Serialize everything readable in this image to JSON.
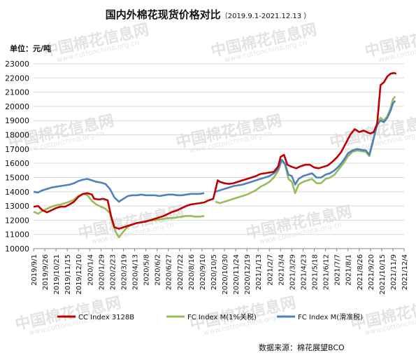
{
  "title_main": "国内外棉花现货价格对比",
  "title_range": "（2019.9.1-2021.12.13 ）",
  "unit_label": "单位：元/吨",
  "source_label": "数据来源：棉花展望BCO",
  "watermark_text": "中国棉花信息网",
  "watermark_url": "www.cottonchina.org.cn",
  "chart_data": {
    "type": "line",
    "ylim": [
      10000,
      23000
    ],
    "y_ticks": [
      10000,
      11000,
      12000,
      13000,
      14000,
      15000,
      16000,
      17000,
      18000,
      19000,
      20000,
      21000,
      22000,
      23000
    ],
    "x_ticks": [
      "2019/9/1",
      "2019/9/26",
      "2019/10/21",
      "2019/11/15",
      "2019/12/10",
      "2020/1/4",
      "2020/1/29",
      "2020/2/23",
      "2020/3/19",
      "2020/4/13",
      "2020/5/8",
      "2020/6/2",
      "2020/6/27",
      "2020/7/22",
      "2020/8/16",
      "2020/9/10",
      "2020/10/5",
      "2020/10/30",
      "2020/11/24",
      "2020/12/19",
      "2021/1/13",
      "2021/2/7",
      "2021/3/4",
      "2021/3/29",
      "2021/4/23",
      "2021/5/18",
      "2021/6/12",
      "2021/7/7",
      "2021/8/1",
      "2021/8/26",
      "2021/9/20",
      "2021/10/15",
      "2021/11/9",
      "2021/12/4"
    ],
    "grid": "horizontal",
    "legend_position": "bottom",
    "series": [
      {
        "name": "CC Index 3128B",
        "color": "#c00000",
        "points": [
          [
            0,
            12950
          ],
          [
            0.4,
            13000
          ],
          [
            0.8,
            12700
          ],
          [
            1.2,
            12550
          ],
          [
            1.6,
            12700
          ],
          [
            2.0,
            12850
          ],
          [
            2.4,
            12950
          ],
          [
            2.8,
            12950
          ],
          [
            3.2,
            13100
          ],
          [
            3.6,
            13300
          ],
          [
            4.0,
            13650
          ],
          [
            4.4,
            13850
          ],
          [
            4.8,
            13900
          ],
          [
            5.2,
            13800
          ],
          [
            5.4,
            13500
          ],
          [
            5.8,
            13450
          ],
          [
            6.2,
            13500
          ],
          [
            6.6,
            13400
          ],
          [
            6.9,
            12300
          ],
          [
            7.2,
            11500
          ],
          [
            7.6,
            11400
          ],
          [
            8.0,
            11500
          ],
          [
            8.4,
            11600
          ],
          [
            8.8,
            11700
          ],
          [
            9.2,
            11800
          ],
          [
            9.6,
            11850
          ],
          [
            10.0,
            11900
          ],
          [
            10.4,
            12000
          ],
          [
            10.8,
            12100
          ],
          [
            11.2,
            12200
          ],
          [
            11.6,
            12300
          ],
          [
            12.0,
            12450
          ],
          [
            12.4,
            12600
          ],
          [
            12.8,
            12700
          ],
          [
            13.2,
            12850
          ],
          [
            13.6,
            13000
          ],
          [
            14.0,
            13100
          ],
          [
            14.4,
            13150
          ],
          [
            14.8,
            13200
          ],
          [
            15.2,
            13250
          ],
          [
            15.6,
            13400
          ],
          [
            16.0,
            13500
          ],
          [
            16.4,
            14800
          ],
          [
            16.6,
            14700
          ],
          [
            17.0,
            14600
          ],
          [
            17.4,
            14550
          ],
          [
            17.8,
            14600
          ],
          [
            18.2,
            14700
          ],
          [
            18.6,
            14800
          ],
          [
            19.0,
            14900
          ],
          [
            19.4,
            15000
          ],
          [
            19.8,
            15100
          ],
          [
            20.2,
            15250
          ],
          [
            20.6,
            15300
          ],
          [
            21.0,
            15350
          ],
          [
            21.4,
            15400
          ],
          [
            21.8,
            15800
          ],
          [
            22.0,
            16450
          ],
          [
            22.3,
            16600
          ],
          [
            22.6,
            15900
          ],
          [
            23.0,
            15750
          ],
          [
            23.4,
            15650
          ],
          [
            23.8,
            15800
          ],
          [
            24.2,
            15900
          ],
          [
            24.6,
            15900
          ],
          [
            25.0,
            15700
          ],
          [
            25.4,
            15650
          ],
          [
            25.8,
            15750
          ],
          [
            26.2,
            15850
          ],
          [
            26.6,
            16100
          ],
          [
            27.0,
            16400
          ],
          [
            27.4,
            16800
          ],
          [
            27.8,
            17400
          ],
          [
            28.2,
            18000
          ],
          [
            28.6,
            18400
          ],
          [
            29.0,
            18200
          ],
          [
            29.4,
            18300
          ],
          [
            29.8,
            18150
          ],
          [
            30.0,
            18100
          ],
          [
            30.3,
            18200
          ],
          [
            30.6,
            18800
          ],
          [
            30.9,
            21500
          ],
          [
            31.2,
            21700
          ],
          [
            31.5,
            22100
          ],
          [
            31.8,
            22300
          ],
          [
            32.1,
            22350
          ],
          [
            32.3,
            22300
          ]
        ]
      },
      {
        "name": "FC Index M(1%关税)",
        "color": "#9bbb59",
        "points": [
          [
            0,
            12600
          ],
          [
            0.4,
            12450
          ],
          [
            0.8,
            12650
          ],
          [
            1.2,
            12800
          ],
          [
            1.6,
            12950
          ],
          [
            2.0,
            13050
          ],
          [
            2.4,
            13100
          ],
          [
            2.8,
            13200
          ],
          [
            3.2,
            13300
          ],
          [
            3.6,
            13450
          ],
          [
            4.0,
            13700
          ],
          [
            4.4,
            13850
          ],
          [
            4.8,
            13750
          ],
          [
            5.2,
            13350
          ],
          [
            5.6,
            13100
          ],
          [
            6.0,
            12950
          ],
          [
            6.4,
            12800
          ],
          [
            6.8,
            12500
          ],
          [
            7.0,
            11900
          ],
          [
            7.3,
            11200
          ],
          [
            7.6,
            10800
          ],
          [
            8.0,
            11200
          ],
          [
            8.4,
            11550
          ],
          [
            8.8,
            11700
          ],
          [
            9.2,
            11800
          ],
          [
            9.6,
            11850
          ],
          [
            10.0,
            11950
          ],
          [
            10.4,
            12000
          ],
          [
            10.8,
            12000
          ],
          [
            11.2,
            12050
          ],
          [
            11.6,
            12100
          ],
          [
            12.0,
            12150
          ],
          [
            12.4,
            12150
          ],
          [
            12.8,
            12200
          ],
          [
            13.2,
            12250
          ],
          [
            13.6,
            12300
          ],
          [
            14.0,
            12300
          ],
          [
            14.4,
            12250
          ],
          [
            14.8,
            12250
          ],
          [
            15.2,
            12300
          ]
        ],
        "segments_note": "",
        "points2": [
          [
            16.2,
            13300
          ],
          [
            16.6,
            13200
          ],
          [
            17.0,
            13300
          ],
          [
            17.4,
            13400
          ],
          [
            17.8,
            13500
          ],
          [
            18.2,
            13600
          ],
          [
            18.6,
            13700
          ],
          [
            19.0,
            13800
          ],
          [
            19.4,
            13950
          ],
          [
            19.8,
            14100
          ],
          [
            20.2,
            14350
          ],
          [
            20.6,
            14500
          ],
          [
            21.0,
            14700
          ],
          [
            21.4,
            15000
          ],
          [
            21.8,
            15500
          ],
          [
            22.1,
            16200
          ],
          [
            22.4,
            15900
          ],
          [
            22.7,
            14900
          ],
          [
            23.0,
            14700
          ],
          [
            23.3,
            13900
          ],
          [
            23.6,
            14500
          ],
          [
            24.0,
            14700
          ],
          [
            24.4,
            14800
          ],
          [
            24.8,
            14900
          ],
          [
            25.2,
            14600
          ],
          [
            25.6,
            14600
          ],
          [
            26.0,
            14900
          ],
          [
            26.4,
            15000
          ],
          [
            26.8,
            15200
          ],
          [
            27.2,
            15600
          ],
          [
            27.6,
            16000
          ],
          [
            28.0,
            16500
          ],
          [
            28.4,
            16800
          ],
          [
            28.8,
            16900
          ],
          [
            29.2,
            16850
          ],
          [
            29.6,
            16800
          ],
          [
            29.9,
            16500
          ],
          [
            30.2,
            17400
          ],
          [
            30.6,
            18900
          ],
          [
            30.9,
            19200
          ],
          [
            31.2,
            19000
          ],
          [
            31.5,
            19300
          ],
          [
            31.8,
            19900
          ],
          [
            32.0,
            20500
          ],
          [
            32.2,
            20700
          ]
        ]
      },
      {
        "name": "FC Index M(滑准税)",
        "color": "#4f81bd",
        "points": [
          [
            0,
            14000
          ],
          [
            0.4,
            13950
          ],
          [
            0.8,
            14100
          ],
          [
            1.2,
            14200
          ],
          [
            1.6,
            14300
          ],
          [
            2.0,
            14350
          ],
          [
            2.4,
            14400
          ],
          [
            2.8,
            14450
          ],
          [
            3.2,
            14500
          ],
          [
            3.6,
            14600
          ],
          [
            4.0,
            14750
          ],
          [
            4.4,
            14850
          ],
          [
            4.8,
            14900
          ],
          [
            5.2,
            14800
          ],
          [
            5.6,
            14700
          ],
          [
            6.0,
            14650
          ],
          [
            6.4,
            14550
          ],
          [
            6.8,
            14200
          ],
          [
            7.2,
            13600
          ],
          [
            7.6,
            13300
          ],
          [
            8.0,
            13500
          ],
          [
            8.4,
            13700
          ],
          [
            8.8,
            13750
          ],
          [
            9.2,
            13750
          ],
          [
            9.6,
            13800
          ],
          [
            10.0,
            13750
          ],
          [
            10.4,
            13750
          ],
          [
            10.8,
            13750
          ],
          [
            11.2,
            13700
          ],
          [
            11.6,
            13750
          ],
          [
            12.0,
            13800
          ],
          [
            12.4,
            13800
          ],
          [
            12.8,
            13750
          ],
          [
            13.2,
            13750
          ],
          [
            13.6,
            13800
          ],
          [
            14.0,
            13850
          ],
          [
            14.4,
            13850
          ],
          [
            14.8,
            13850
          ],
          [
            15.2,
            13900
          ]
        ],
        "points2": [
          [
            16.2,
            14000
          ],
          [
            16.6,
            14100
          ],
          [
            17.0,
            14200
          ],
          [
            17.4,
            14300
          ],
          [
            17.8,
            14400
          ],
          [
            18.2,
            14450
          ],
          [
            18.6,
            14500
          ],
          [
            19.0,
            14600
          ],
          [
            19.4,
            14700
          ],
          [
            19.8,
            14800
          ],
          [
            20.2,
            14900
          ],
          [
            20.6,
            15000
          ],
          [
            21.0,
            15100
          ],
          [
            21.4,
            15300
          ],
          [
            21.8,
            15600
          ],
          [
            22.1,
            16250
          ],
          [
            22.4,
            15950
          ],
          [
            22.7,
            15200
          ],
          [
            23.0,
            15100
          ],
          [
            23.3,
            14500
          ],
          [
            23.6,
            14900
          ],
          [
            24.0,
            15100
          ],
          [
            24.4,
            15200
          ],
          [
            24.8,
            15300
          ],
          [
            25.2,
            15000
          ],
          [
            25.6,
            15000
          ],
          [
            26.0,
            15200
          ],
          [
            26.4,
            15300
          ],
          [
            26.8,
            15500
          ],
          [
            27.2,
            15800
          ],
          [
            27.6,
            16200
          ],
          [
            28.0,
            16700
          ],
          [
            28.4,
            16900
          ],
          [
            28.8,
            17000
          ],
          [
            29.2,
            16950
          ],
          [
            29.6,
            16900
          ],
          [
            29.9,
            16600
          ],
          [
            30.2,
            17500
          ],
          [
            30.6,
            18700
          ],
          [
            30.9,
            19000
          ],
          [
            31.2,
            18900
          ],
          [
            31.5,
            19200
          ],
          [
            31.8,
            19700
          ],
          [
            32.0,
            20200
          ],
          [
            32.2,
            20400
          ]
        ]
      }
    ]
  }
}
